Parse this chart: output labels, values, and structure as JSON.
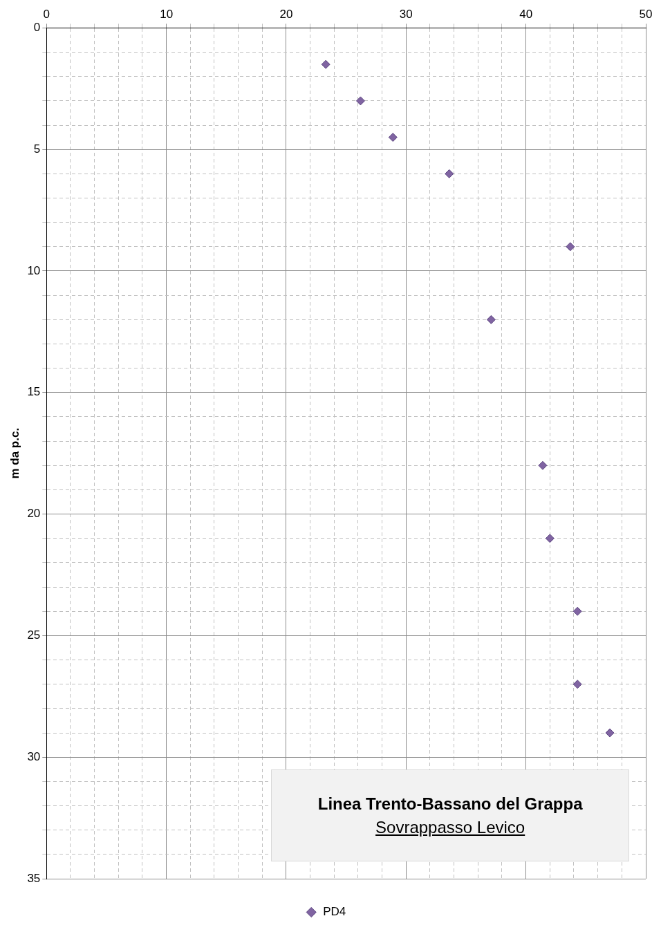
{
  "chart_data": {
    "type": "scatter",
    "title": "Linea Trento-Bassano del Grappa",
    "subtitle": "Sovrappasso Levico",
    "ylabel": "m da p.c.",
    "x": [
      23.3,
      26.2,
      28.9,
      33.6,
      43.7,
      37.1,
      41.4,
      42.0,
      44.3,
      44.3,
      47.0
    ],
    "series": [
      {
        "name": "PD4",
        "color": "#8064a2",
        "values": [
          1.5,
          3.0,
          4.5,
          6.0,
          9.0,
          12.0,
          18.0,
          21.0,
          24.0,
          27.0,
          29.0
        ]
      }
    ],
    "xlim": [
      0,
      50
    ],
    "xticks": [
      0,
      {
        "value": 2,
        "label": null
      },
      {
        "value": 4,
        "label": null
      },
      {
        "value": 6,
        "label": null
      },
      {
        "value": 8,
        "label": null
      },
      10,
      {
        "value": 12,
        "label": null
      },
      {
        "value": 14,
        "label": null
      },
      {
        "value": 16,
        "label": null
      },
      {
        "value": 18,
        "label": null
      },
      20,
      {
        "value": 22,
        "label": null
      },
      {
        "value": 24,
        "label": null
      },
      {
        "value": 26,
        "label": null
      },
      {
        "value": 28,
        "label": null
      },
      30,
      {
        "value": 32,
        "label": null
      },
      {
        "value": 34,
        "label": null
      },
      {
        "value": 36,
        "label": null
      },
      {
        "value": 38,
        "label": null
      },
      40,
      {
        "value": 42,
        "label": null
      },
      {
        "value": 44,
        "label": null
      },
      {
        "value": 46,
        "label": null
      },
      {
        "value": 48,
        "label": null
      },
      50
    ],
    "ylim": [
      35,
      0
    ],
    "yticks": [
      0,
      {
        "value": 1,
        "label": null
      },
      {
        "value": 2,
        "label": null
      },
      {
        "value": 3,
        "label": null
      },
      {
        "value": 4,
        "label": null
      },
      5,
      {
        "value": 6,
        "label": null
      },
      {
        "value": 7,
        "label": null
      },
      {
        "value": 8,
        "label": null
      },
      {
        "value": 9,
        "label": null
      },
      10,
      {
        "value": 11,
        "label": null
      },
      {
        "value": 12,
        "label": null
      },
      {
        "value": 13,
        "label": null
      },
      {
        "value": 14,
        "label": null
      },
      15,
      {
        "value": 16,
        "label": null
      },
      {
        "value": 17,
        "label": null
      },
      {
        "value": 18,
        "label": null
      },
      {
        "value": 19,
        "label": null
      },
      20,
      {
        "value": 21,
        "label": null
      },
      {
        "value": 22,
        "label": null
      },
      {
        "value": 23,
        "label": null
      },
      {
        "value": 24,
        "label": null
      },
      25,
      {
        "value": 26,
        "label": null
      },
      {
        "value": 27,
        "label": null
      },
      {
        "value": 28,
        "label": null
      },
      {
        "value": 29,
        "label": null
      },
      30,
      {
        "value": 31,
        "label": null
      },
      {
        "value": 32,
        "label": null
      },
      {
        "value": 33,
        "label": null
      },
      {
        "value": 34,
        "label": null
      },
      35
    ],
    "grid": true,
    "legend": "bottom",
    "marker": "diamond"
  }
}
